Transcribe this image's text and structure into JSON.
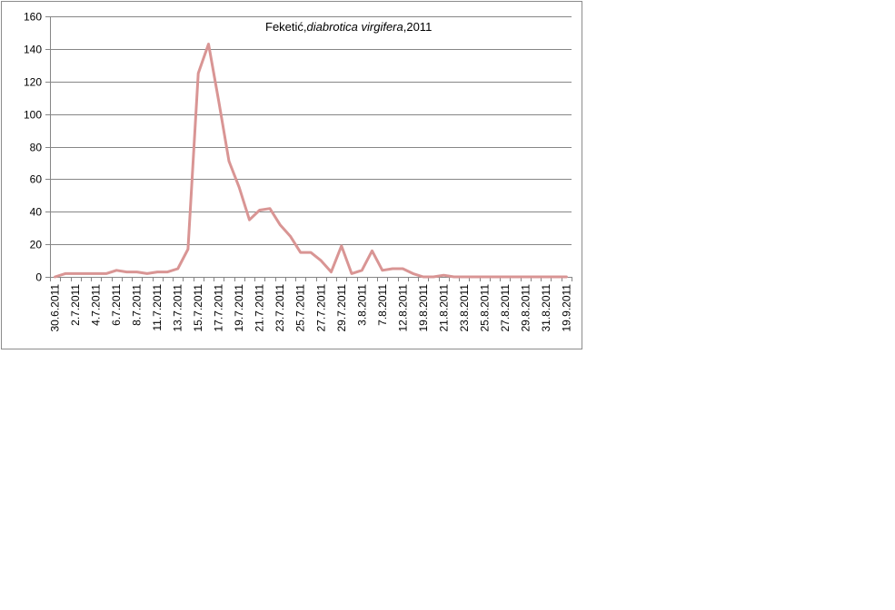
{
  "chart_data": {
    "type": "line",
    "title": {
      "prefix": "Feketić,",
      "italic": "diabrotica virgifera",
      "suffix": ",2011"
    },
    "xlabel": "",
    "ylabel": "",
    "ylim": [
      0,
      160
    ],
    "yticks": [
      0,
      20,
      40,
      60,
      80,
      100,
      120,
      140,
      160
    ],
    "grid": true,
    "legend": "none",
    "line_color": "#d99594",
    "categories": [
      "30.6.2011",
      "1.7.2011",
      "2.7.2011",
      "3.7.2011",
      "4.7.2011",
      "5.7.2011",
      "6.7.2011",
      "7.7.2011",
      "8.7.2011",
      "10.7.2011",
      "11.7.2011",
      "12.7.2011",
      "13.7.2011",
      "14.7.2011",
      "15.7.2011",
      "16.7.2011",
      "17.7.2011",
      "18.7.2011",
      "19.7.2011",
      "20.7.2011",
      "21.7.2011",
      "22.7.2011",
      "23.7.2011",
      "24.7.2011",
      "25.7.2011",
      "26.7.2011",
      "27.7.2011",
      "28.7.2011",
      "29.7.2011",
      "2.8.2011",
      "3.8.2011",
      "5.8.2011",
      "7.8.2011",
      "10.8.2011",
      "12.8.2011",
      "16.8.2011",
      "19.8.2011",
      "20.8.2011",
      "21.8.2011",
      "22.8.2011",
      "23.8.2011",
      "24.8.2011",
      "25.8.2011",
      "26.8.2011",
      "27.8.2011",
      "28.8.2011",
      "29.8.2011",
      "30.8.2011",
      "31.8.2011",
      "2.9.2011",
      "19.9.2011"
    ],
    "visible_tick_labels": [
      "30.6.2011",
      "2.7.2011",
      "4.7.2011",
      "6.7.2011",
      "8.7.2011",
      "11.7.2011",
      "13.7.2011",
      "15.7.2011",
      "17.7.2011",
      "19.7.2011",
      "21.7.2011",
      "23.7.2011",
      "25.7.2011",
      "27.7.2011",
      "29.7.2011",
      "3.8.2011",
      "7.8.2011",
      "12.8.2011",
      "19.8.2011",
      "21.8.2011",
      "23.8.2011",
      "25.8.2011",
      "27.8.2011",
      "29.8.2011",
      "31.8.2011",
      "19.9.2011"
    ],
    "values": [
      0,
      2,
      2,
      2,
      2,
      2,
      4,
      3,
      3,
      2,
      3,
      3,
      5,
      17,
      125,
      143,
      108,
      71,
      55,
      35,
      41,
      42,
      32,
      25,
      15,
      15,
      10,
      3,
      19,
      2,
      4,
      16,
      4,
      5,
      5,
      2,
      0,
      0,
      1,
      0,
      0,
      0,
      0,
      0,
      0,
      0,
      0,
      0,
      0,
      0,
      0
    ]
  }
}
